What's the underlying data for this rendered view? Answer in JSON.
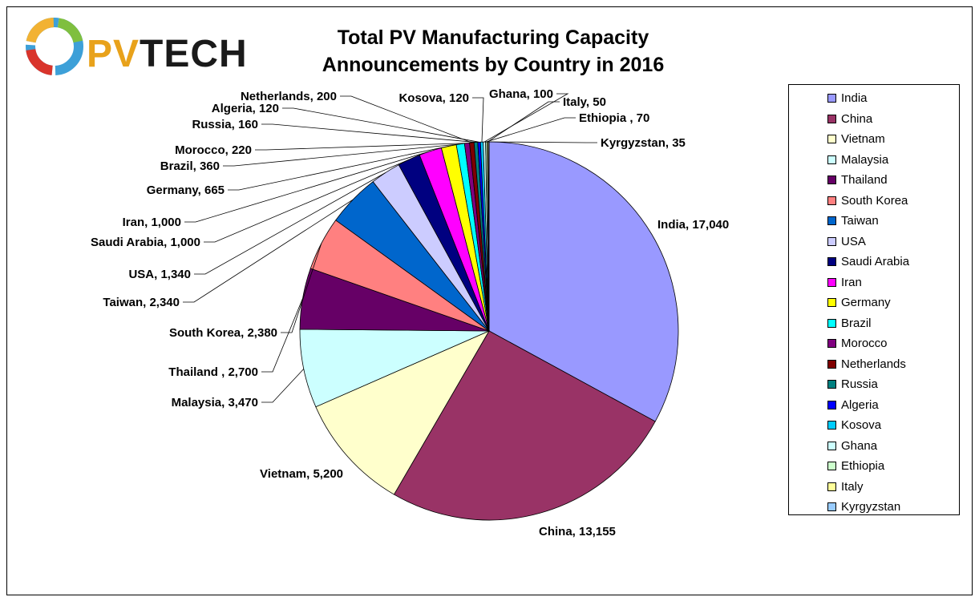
{
  "logo": {
    "text_pv": "PV",
    "text_tech": "TECH"
  },
  "title_line1": "Total PV Manufacturing Capacity",
  "title_line2": "Announcements by Country in 2016",
  "chart_data": {
    "type": "pie",
    "title": "Total PV Manufacturing Capacity Announcements by Country in 2016",
    "legend_position": "right",
    "slices": [
      {
        "name": "India",
        "value": 17040,
        "label": "India, 17,040",
        "color": "#9999ff"
      },
      {
        "name": "China",
        "value": 13155,
        "label": "China, 13,155",
        "color": "#993366"
      },
      {
        "name": "Vietnam",
        "value": 5200,
        "label": "Vietnam, 5,200",
        "color": "#ffffcc"
      },
      {
        "name": "Malaysia",
        "value": 3470,
        "label": "Malaysia, 3,470",
        "color": "#ccffff"
      },
      {
        "name": "Thailand",
        "value": 2700,
        "label": "Thailand , 2,700",
        "color": "#660066"
      },
      {
        "name": "South Korea",
        "value": 2380,
        "label": "South Korea, 2,380",
        "color": "#ff8080"
      },
      {
        "name": "Taiwan",
        "value": 2340,
        "label": "Taiwan, 2,340",
        "color": "#0066cc"
      },
      {
        "name": "USA",
        "value": 1340,
        "label": "USA, 1,340",
        "color": "#ccccff"
      },
      {
        "name": "Saudi Arabia",
        "value": 1000,
        "label": "Saudi Arabia, 1,000",
        "color": "#000080"
      },
      {
        "name": "Iran",
        "value": 1000,
        "label": "Iran, 1,000",
        "color": "#ff00ff"
      },
      {
        "name": "Germany",
        "value": 665,
        "label": "Germany, 665",
        "color": "#ffff00"
      },
      {
        "name": "Brazil",
        "value": 360,
        "label": "Brazil, 360",
        "color": "#00ffff"
      },
      {
        "name": "Morocco",
        "value": 220,
        "label": "Morocco, 220",
        "color": "#800080"
      },
      {
        "name": "Netherlands",
        "value": 200,
        "label": "Netherlands, 200",
        "color": "#800000"
      },
      {
        "name": "Russia",
        "value": 160,
        "label": "Russia, 160",
        "color": "#008080"
      },
      {
        "name": "Algeria",
        "value": 120,
        "label": "Algeria, 120",
        "color": "#0000ff"
      },
      {
        "name": "Kosova",
        "value": 120,
        "label": "Kosova, 120",
        "color": "#00ccff"
      },
      {
        "name": "Ghana",
        "value": 100,
        "label": "Ghana, 100",
        "color": "#ccffff"
      },
      {
        "name": "Ethiopia",
        "value": 70,
        "label": "Ethiopia , 70",
        "color": "#ccffcc"
      },
      {
        "name": "Italy",
        "value": 50,
        "label": "Italy, 50",
        "color": "#ffff99"
      },
      {
        "name": "Kyrgyzstan",
        "value": 35,
        "label": "Kyrgyzstan, 35",
        "color": "#99ccff"
      }
    ]
  }
}
